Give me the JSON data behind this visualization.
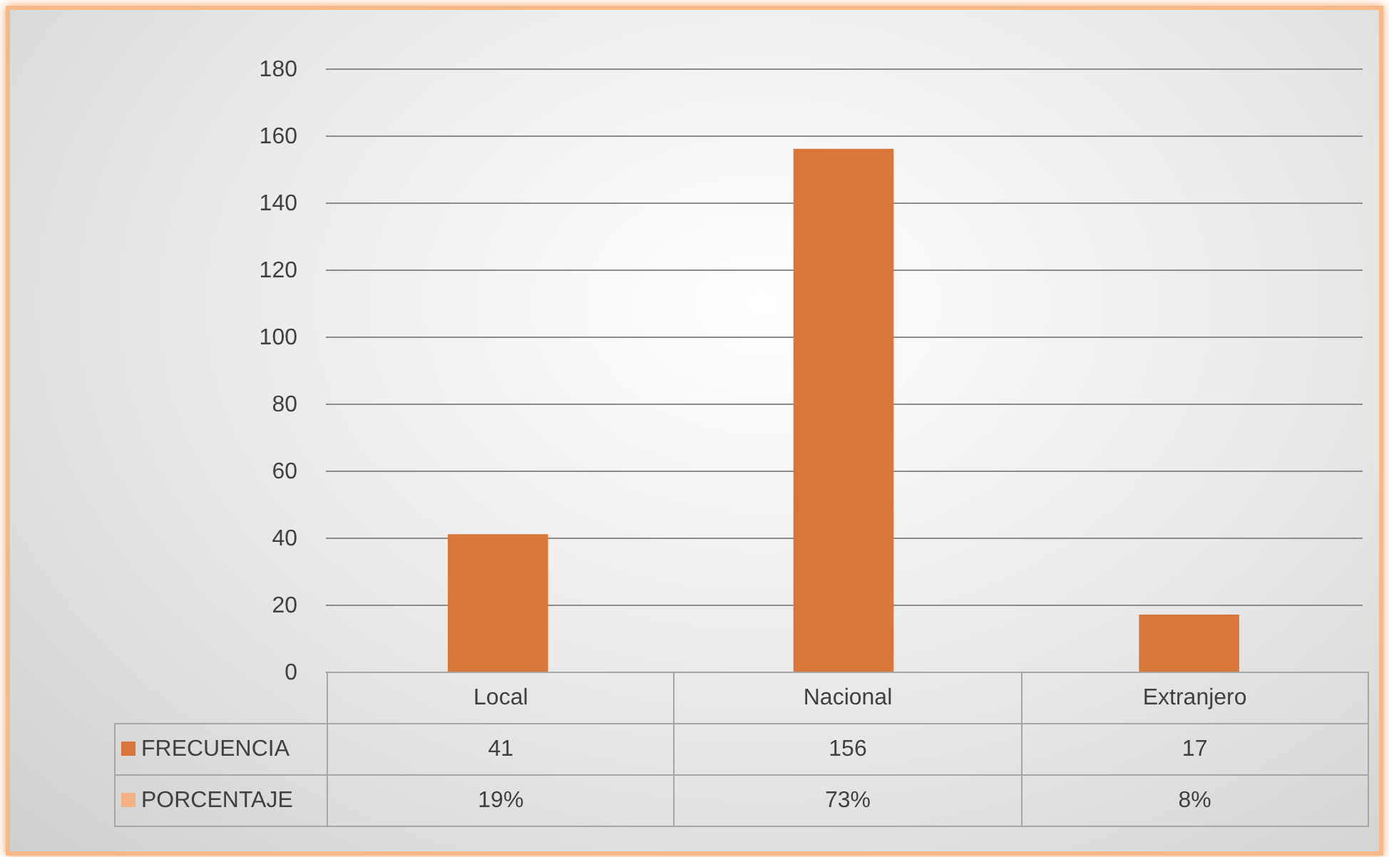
{
  "chart_data": {
    "type": "bar",
    "categories": [
      "Local",
      "Nacional",
      "Extranjero"
    ],
    "series": [
      {
        "name": "FRECUENCIA",
        "color": "#d9773a",
        "values": [
          41,
          156,
          17
        ],
        "value_labels": [
          "41",
          "156",
          "17"
        ]
      },
      {
        "name": "PORCENTAJE",
        "color": "#f4b183",
        "values": [
          null,
          null,
          null
        ],
        "value_labels": [
          "19%",
          "73%",
          "8%"
        ]
      }
    ],
    "ylim": [
      0,
      180
    ],
    "yticks": [
      0,
      20,
      40,
      60,
      80,
      100,
      120,
      140,
      160,
      180
    ],
    "grid": "y",
    "legend": "bottom"
  }
}
